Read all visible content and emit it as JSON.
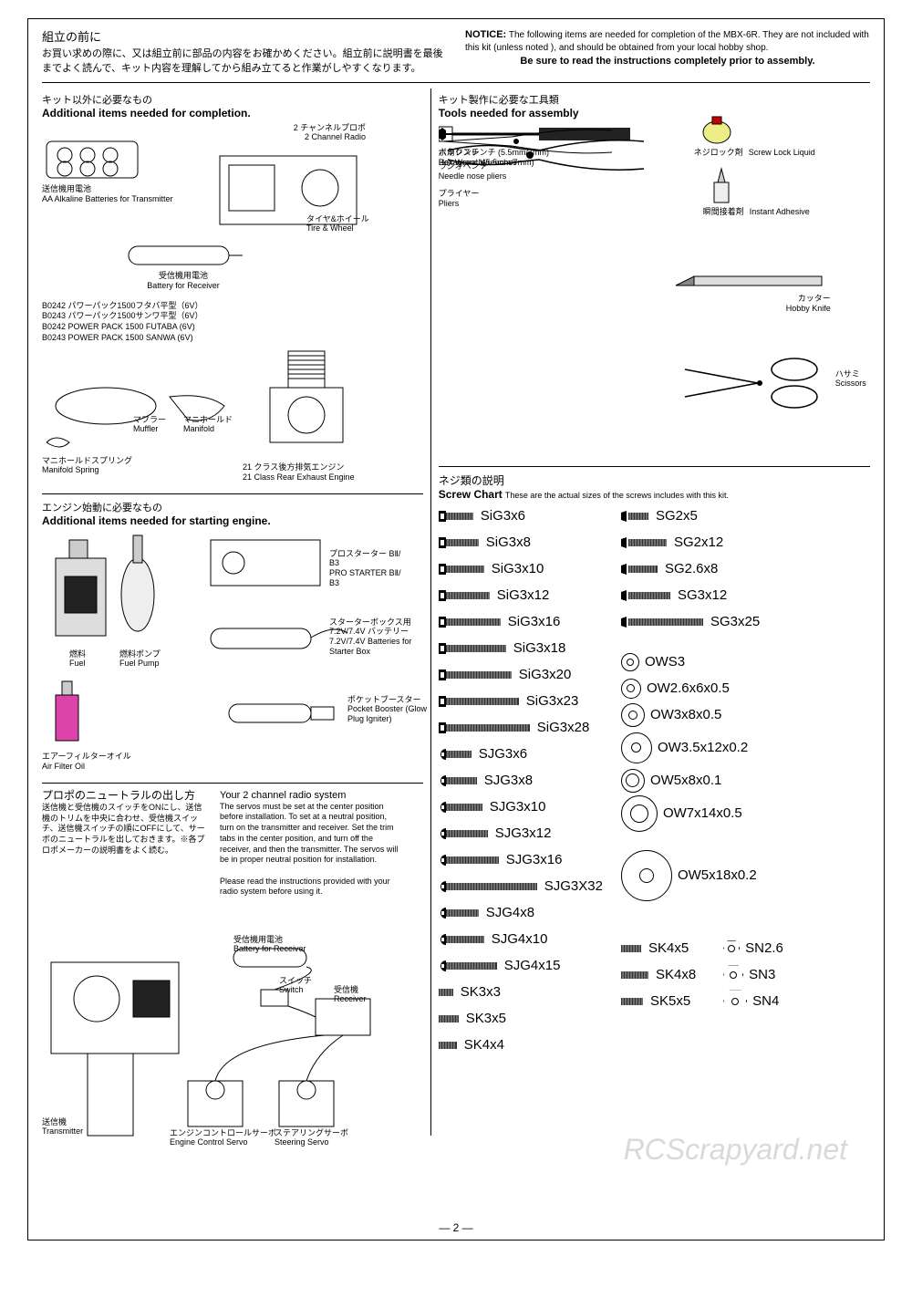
{
  "top": {
    "jp_title": "組立の前に",
    "jp_body": "お買い求めの際に、又は組立前に部品の内容をお確かめください。組立前に説明書を最後までよく読んで、キット内容を理解してから組み立てると作業がしやすくなります。",
    "notice_label": "NOTICE:",
    "notice_text": "The following items are needed for completion of the MBX-6R. They are not included with this kit (unless noted ), and should be obtained from your local hobby shop.",
    "read_line": "Be sure to read the instructions completely  prior to assembly."
  },
  "additional": {
    "jp": "キット以外に必要なもの",
    "en": "Additional  items  needed  for  completion.",
    "batteries_jp": "送信機用電池",
    "batteries_en": "AA Alkaline Batteries for Transmitter",
    "radio_jp": "2 チャンネルプロポ",
    "radio_en": "2 Channel Radio",
    "tire_jp": "タイヤ&ホイール",
    "tire_en": "Tire & Wheel",
    "recv_batt_jp": "受信機用電池",
    "recv_batt_en": "Battery  for  Receiver",
    "pp1": "B0242 パワーパック1500フタバ平型（6V）",
    "pp2": "B0243 パワーパック1500サンワ平型（6V）",
    "pp3": "B0242 POWER PACK 1500 FUTABA  (6V)",
    "pp4": "B0243 POWER PACK 1500 SANWA (6V)",
    "manifold_spring_jp": "マニホールドスプリング",
    "manifold_spring_en": "Manifold Spring",
    "muffler_jp": "マフラー",
    "muffler_en": "Muffler",
    "manifold_jp": "マニホールド",
    "manifold_en": "Manifold",
    "engine_jp": "21 クラス後方排気エンジン",
    "engine_en": "21 Class Rear Exhaust Engine"
  },
  "starting": {
    "jp": "エンジン始動に必要なもの",
    "en": "Additional  items  needed  for  starting  engine.",
    "fuel_jp": "燃料",
    "fuel_en": "Fuel",
    "fuelpump_jp": "燃料ポンプ",
    "fuelpump_en": "Fuel Pump",
    "starter_jp": "プロスターター BⅡ/ B3",
    "starter_en": "PRO STARTER BⅡ/ B3",
    "sbatt_jp": "スターターボックス用 7.2V/7.4V バッテリー",
    "sbatt_en": "7.2V/7.4V Batteries for  Starter  Box",
    "airfilter_jp": "エアーフィルターオイル",
    "airfilter_en": "Air Filter Oil",
    "booster_jp": "ポケットブースター",
    "booster_en": "Pocket Booster (Glow Plug Igniter)"
  },
  "radio": {
    "jp_title": "プロポのニュートラルの出し方",
    "en_title": "Your 2 channel radio system",
    "jp_body": "送信機と受信機のスイッチをONにし、送信機のトリムを中央に合わせ、受信機スイッチ、送信機スイッチの順にOFFにして、サーボのニュートラルを出しておきます。※各プロポメーカーの説明書をよく読む。",
    "en_body": "The servos must be set at the center position before installation. To set at a neutral position, turn on the transmitter and receiver. Set the trim tabs in the center position, and turn off the receiver, and then the transmitter. The servos will be in proper neutral position for installation.",
    "en_body2": "Please read the instructions provided with your radio system before using it.",
    "recv_batt_jp": "受信機用電池",
    "recv_batt_en": "Battery for Receiver",
    "switch_jp": "スイッチ",
    "switch_en": "Switch",
    "receiver_jp": "受信機",
    "receiver_en": "Receiver",
    "transmitter_jp": "送信機",
    "transmitter_en": "Transmitter",
    "ecs_jp": "エンジンコントロールサーボ",
    "ecs_en": "Engine Control Servo",
    "steer_jp": "ステアリングサーボ",
    "steer_en": "Steering Servo"
  },
  "tools": {
    "jp": "キット製作に必要な工具類",
    "en": "Tools needed for assembly",
    "boxwrench_jp": "ボックスレンチ (5.5mm/7mm)",
    "boxwrench_en": "Box Wrench(5.5mm/7mm)",
    "hexwrench_jp": "六角レンチ",
    "hexwrench_en": "Hexagonal Wrenches",
    "radiopliers_jp": "ラジオペンチ",
    "radiopliers_en": "Needle nose pliers",
    "pliers_jp": "プライヤー",
    "pliers_en": "Pliers",
    "screwlock_jp": "ネジロック剤",
    "screwlock_en": "Screw Lock Liquid",
    "adhesive_jp": "瞬間接着剤",
    "adhesive_en": "Instant Adhesive",
    "knife_jp": "カッター",
    "knife_en": "Hobby Knife",
    "scissors_jp": "ハサミ",
    "scissors_en": "Scissors"
  },
  "screws": {
    "jp": "ネジ類の説明",
    "en": "Screw  Chart",
    "note": "These are the actual sizes of the screws includes with this kit.",
    "col1": [
      {
        "label": "SiG3x6",
        "len": 30,
        "head": "cap"
      },
      {
        "label": "SiG3x8",
        "len": 36,
        "head": "cap"
      },
      {
        "label": "SiG3x10",
        "len": 42,
        "head": "cap"
      },
      {
        "label": "SiG3x12",
        "len": 48,
        "head": "cap"
      },
      {
        "label": "SiG3x16",
        "len": 60,
        "head": "cap"
      },
      {
        "label": "SiG3x18",
        "len": 66,
        "head": "cap"
      },
      {
        "label": "SiG3x20",
        "len": 72,
        "head": "cap"
      },
      {
        "label": "SiG3x23",
        "len": 80,
        "head": "cap"
      },
      {
        "label": "SiG3x28",
        "len": 92,
        "head": "cap"
      },
      {
        "label": "SJG3x6",
        "len": 28,
        "head": "button"
      },
      {
        "label": "SJG3x8",
        "len": 34,
        "head": "button"
      },
      {
        "label": "SJG3x10",
        "len": 40,
        "head": "button"
      },
      {
        "label": "SJG3x12",
        "len": 46,
        "head": "button"
      },
      {
        "label": "SJG3x16",
        "len": 58,
        "head": "button"
      },
      {
        "label": "SJG3X32",
        "len": 100,
        "head": "button"
      },
      {
        "label": "SJG4x8",
        "len": 36,
        "head": "button"
      },
      {
        "label": "SJG4x10",
        "len": 42,
        "head": "button"
      },
      {
        "label": "SJG4x15",
        "len": 56,
        "head": "button"
      },
      {
        "label": "SK3x3",
        "len": 16,
        "head": "set"
      },
      {
        "label": "SK3x5",
        "len": 22,
        "head": "set"
      },
      {
        "label": "SK4x4",
        "len": 20,
        "head": "set"
      }
    ],
    "col2_screws": [
      {
        "label": "SG2x5",
        "len": 22,
        "head": "flat"
      },
      {
        "label": "SG2x12",
        "len": 42,
        "head": "flat"
      },
      {
        "label": "SG2.6x8",
        "len": 32,
        "head": "flat"
      },
      {
        "label": "SG3x12",
        "len": 46,
        "head": "flat"
      },
      {
        "label": "SG3x25",
        "len": 82,
        "head": "flat"
      }
    ],
    "col2_washers": [
      {
        "label": "OWS3",
        "od": 20,
        "id": 8
      },
      {
        "label": "OW2.6x6x0.5",
        "od": 22,
        "id": 9
      },
      {
        "label": "OW3x8x0.5",
        "od": 26,
        "id": 10
      },
      {
        "label": "OW3.5x12x0.2",
        "od": 34,
        "id": 11
      },
      {
        "label": "OW5x8x0.1",
        "od": 26,
        "id": 15
      },
      {
        "label": "OW7x14x0.5",
        "od": 40,
        "id": 20
      },
      {
        "label": "OW5x18x0.2",
        "od": 56,
        "id": 16
      }
    ],
    "col2_nuts": [
      {
        "label": "SN2.6",
        "size": 1
      },
      {
        "label": "SN3",
        "size": 2
      },
      {
        "label": "SN4",
        "size": 3
      }
    ],
    "col2_setsk": [
      {
        "label": "SK4x5",
        "len": 22,
        "head": "set"
      },
      {
        "label": "SK4x8",
        "len": 30,
        "head": "set"
      },
      {
        "label": "SK5x5",
        "len": 24,
        "head": "set"
      }
    ]
  },
  "page_num": "— 2 —",
  "watermark": "RCScrapyard.net"
}
